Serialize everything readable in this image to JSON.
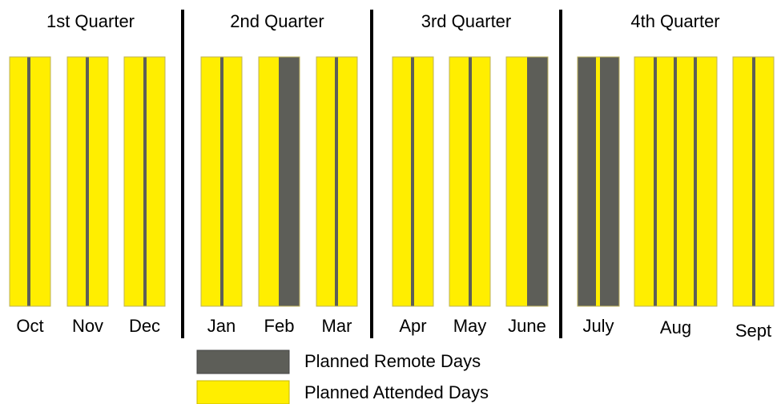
{
  "quarters": [
    {
      "title": "1st Quarter",
      "months": [
        "Oct",
        "Nov",
        "Dec"
      ]
    },
    {
      "title": "2nd Quarter",
      "months": [
        "Jan",
        "Feb",
        "Mar"
      ]
    },
    {
      "title": "3rd Quarter",
      "months": [
        "Apr",
        "May",
        "June"
      ]
    },
    {
      "title": "4th Quarter",
      "months": [
        "July",
        "Aug",
        "Sept"
      ]
    }
  ],
  "legend": [
    {
      "label": "Planned Remote Days"
    },
    {
      "label": "Planned Attended Days"
    }
  ]
}
